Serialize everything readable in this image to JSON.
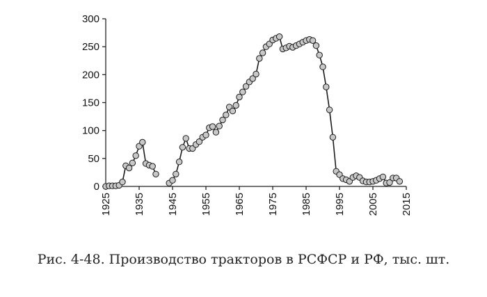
{
  "caption": "Рис. 4-48. Производство тракторов в РСФСР и РФ, тыс. шт.",
  "chart_data": {
    "type": "line",
    "title": "",
    "xlabel": "",
    "ylabel": "",
    "xlim": [
      1925,
      2015
    ],
    "ylim": [
      0,
      300
    ],
    "xticks": [
      1925,
      1935,
      1945,
      1955,
      1965,
      1975,
      1985,
      1995,
      2005,
      2015
    ],
    "yticks": [
      0,
      50,
      100,
      150,
      200,
      250,
      300
    ],
    "grid": false,
    "series": [
      {
        "segments": [
          [
            [
              1925,
              0
            ],
            [
              1926,
              1
            ],
            [
              1927,
              1
            ],
            [
              1928,
              1
            ],
            [
              1929,
              2
            ],
            [
              1930,
              8
            ],
            [
              1931,
              37
            ],
            [
              1932,
              33
            ],
            [
              1933,
              42
            ],
            [
              1934,
              55
            ],
            [
              1935,
              72
            ],
            [
              1936,
              79
            ],
            [
              1937,
              41
            ],
            [
              1938,
              38
            ],
            [
              1939,
              36
            ],
            [
              1940,
              22
            ]
          ],
          [
            [
              1944,
              6
            ],
            [
              1945,
              11
            ],
            [
              1946,
              22
            ],
            [
              1947,
              44
            ],
            [
              1948,
              70
            ],
            [
              1949,
              86
            ],
            [
              1950,
              68
            ],
            [
              1951,
              68
            ],
            [
              1952,
              75
            ],
            [
              1953,
              80
            ],
            [
              1954,
              88
            ],
            [
              1955,
              92
            ],
            [
              1956,
              105
            ],
            [
              1957,
              107
            ],
            [
              1958,
              97
            ],
            [
              1959,
              108
            ],
            [
              1960,
              119
            ],
            [
              1961,
              128
            ],
            [
              1962,
              142
            ],
            [
              1963,
              135
            ],
            [
              1964,
              145
            ],
            [
              1965,
              160
            ],
            [
              1966,
              169
            ],
            [
              1967,
              179
            ],
            [
              1968,
              187
            ],
            [
              1969,
              193
            ],
            [
              1970,
              201
            ],
            [
              1971,
              229
            ],
            [
              1972,
              239
            ],
            [
              1973,
              250
            ],
            [
              1974,
              255
            ],
            [
              1975,
              262
            ],
            [
              1976,
              265
            ],
            [
              1977,
              268
            ],
            [
              1978,
              246
            ],
            [
              1979,
              248
            ],
            [
              1980,
              251
            ],
            [
              1981,
              249
            ],
            [
              1982,
              252
            ],
            [
              1983,
              255
            ],
            [
              1984,
              258
            ],
            [
              1985,
              261
            ],
            [
              1986,
              263
            ],
            [
              1987,
              261
            ],
            [
              1988,
              252
            ],
            [
              1989,
              235
            ],
            [
              1990,
              214
            ],
            [
              1991,
              178
            ],
            [
              1992,
              137
            ],
            [
              1993,
              88
            ],
            [
              1994,
              27
            ],
            [
              1995,
              21
            ],
            [
              1996,
              14
            ],
            [
              1997,
              12
            ],
            [
              1998,
              9
            ],
            [
              1999,
              16
            ],
            [
              2000,
              19
            ],
            [
              2001,
              16
            ],
            [
              2002,
              10
            ],
            [
              2003,
              8
            ],
            [
              2004,
              8
            ],
            [
              2005,
              9
            ],
            [
              2006,
              11
            ],
            [
              2007,
              14
            ],
            [
              2008,
              17
            ],
            [
              2009,
              6
            ],
            [
              2010,
              7
            ],
            [
              2011,
              15
            ],
            [
              2012,
              15
            ],
            [
              2013,
              9
            ]
          ]
        ]
      }
    ]
  }
}
